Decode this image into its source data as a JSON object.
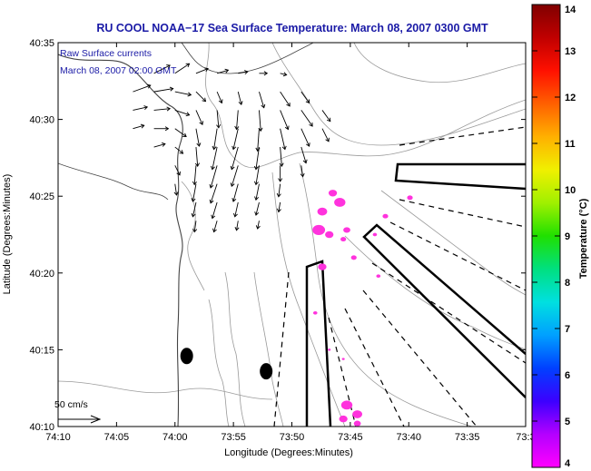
{
  "chart_data": {
    "type": "scatter",
    "title": "RU COOL  NOAA−17  Sea Surface Temperature:  March 08, 2007 0300 GMT",
    "annotation_line1": "Raw Surface currents",
    "annotation_line2": "March 08, 2007 02:00 GMT",
    "xlabel": "Longitude (Degrees:Minutes)",
    "ylabel": "Latitude (Degrees:Minutes)",
    "x_tick_labels": [
      "74:10",
      "74:05",
      "74:00",
      "73:55",
      "73:50",
      "73:45",
      "73:40",
      "73:35",
      "73:3"
    ],
    "y_tick_labels": [
      "40:35",
      "40:30",
      "40:25",
      "40:20",
      "40:15",
      "40:10"
    ],
    "xlim": [
      -74.1667,
      -73.5
    ],
    "ylim": [
      40.1667,
      40.5833
    ],
    "colorbar": {
      "label": "Temperature (°C)",
      "tick_labels": [
        "14",
        "13",
        "12",
        "11",
        "10",
        "9",
        "8",
        "7",
        "6",
        "5",
        "4"
      ],
      "range": [
        4,
        14
      ],
      "colors": [
        "#ff00ff",
        "#b400ff",
        "#3c00ff",
        "#0040ff",
        "#00a0ff",
        "#00e0e0",
        "#00e080",
        "#20e000",
        "#a0f000",
        "#f0f000",
        "#ffb000",
        "#ff6000",
        "#ff1000",
        "#c00000",
        "#800000"
      ]
    },
    "scale_label": "50 cm/s",
    "grid": false,
    "legend": "none",
    "ocean_color": "#ffffff",
    "sst_color": "#ff33dd",
    "land_markers": [
      {
        "lon": -73.9833,
        "lat": 40.2433
      },
      {
        "lon": -73.87,
        "lat": 40.2267
      }
    ],
    "current_vectors": [
      {
        "lon": -74.03,
        "lat": 40.55,
        "u": 20,
        "v": 10
      },
      {
        "lon": -74.0,
        "lat": 40.55,
        "u": 18,
        "v": 12
      },
      {
        "lon": -73.97,
        "lat": 40.55,
        "u": 15,
        "v": 6
      },
      {
        "lon": -73.94,
        "lat": 40.55,
        "u": 14,
        "v": 4
      },
      {
        "lon": -73.91,
        "lat": 40.55,
        "u": 12,
        "v": 2
      },
      {
        "lon": -73.88,
        "lat": 40.55,
        "u": 10,
        "v": 0
      },
      {
        "lon": -73.85,
        "lat": 40.55,
        "u": 8,
        "v": -2
      },
      {
        "lon": -74.06,
        "lat": 40.53,
        "u": 22,
        "v": 8
      },
      {
        "lon": -74.03,
        "lat": 40.53,
        "u": 24,
        "v": 4
      },
      {
        "lon": -74.0,
        "lat": 40.53,
        "u": 20,
        "v": -4
      },
      {
        "lon": -73.97,
        "lat": 40.53,
        "u": 12,
        "v": -12
      },
      {
        "lon": -73.94,
        "lat": 40.53,
        "u": 6,
        "v": -14
      },
      {
        "lon": -73.91,
        "lat": 40.53,
        "u": 4,
        "v": -16
      },
      {
        "lon": -73.88,
        "lat": 40.53,
        "u": 6,
        "v": -20
      },
      {
        "lon": -73.85,
        "lat": 40.53,
        "u": 12,
        "v": -18
      },
      {
        "lon": -73.82,
        "lat": 40.53,
        "u": 10,
        "v": -14
      },
      {
        "lon": -74.06,
        "lat": 40.51,
        "u": 18,
        "v": 4
      },
      {
        "lon": -74.03,
        "lat": 40.51,
        "u": 20,
        "v": 2
      },
      {
        "lon": -74.0,
        "lat": 40.51,
        "u": 18,
        "v": -6
      },
      {
        "lon": -73.97,
        "lat": 40.51,
        "u": 8,
        "v": -18
      },
      {
        "lon": -73.94,
        "lat": 40.51,
        "u": 2,
        "v": -22
      },
      {
        "lon": -73.91,
        "lat": 40.51,
        "u": -2,
        "v": -24
      },
      {
        "lon": -73.88,
        "lat": 40.51,
        "u": 2,
        "v": -26
      },
      {
        "lon": -73.85,
        "lat": 40.51,
        "u": 10,
        "v": -24
      },
      {
        "lon": -73.82,
        "lat": 40.51,
        "u": 14,
        "v": -20
      },
      {
        "lon": -73.79,
        "lat": 40.51,
        "u": 10,
        "v": -14
      },
      {
        "lon": -74.06,
        "lat": 40.49,
        "u": 14,
        "v": 4
      },
      {
        "lon": -74.03,
        "lat": 40.49,
        "u": 18,
        "v": 0
      },
      {
        "lon": -74.0,
        "lat": 40.49,
        "u": 14,
        "v": -10
      },
      {
        "lon": -73.97,
        "lat": 40.49,
        "u": 4,
        "v": -22
      },
      {
        "lon": -73.94,
        "lat": 40.49,
        "u": -4,
        "v": -26
      },
      {
        "lon": -73.91,
        "lat": 40.49,
        "u": -6,
        "v": -26
      },
      {
        "lon": -73.88,
        "lat": 40.49,
        "u": -2,
        "v": -28
      },
      {
        "lon": -73.85,
        "lat": 40.49,
        "u": 6,
        "v": -26
      },
      {
        "lon": -73.82,
        "lat": 40.49,
        "u": 10,
        "v": -22
      },
      {
        "lon": -73.79,
        "lat": 40.49,
        "u": 8,
        "v": -16
      },
      {
        "lon": -74.03,
        "lat": 40.47,
        "u": 14,
        "v": 4
      },
      {
        "lon": -74.0,
        "lat": 40.47,
        "u": 10,
        "v": -8
      },
      {
        "lon": -73.97,
        "lat": 40.47,
        "u": 2,
        "v": -24
      },
      {
        "lon": -73.94,
        "lat": 40.47,
        "u": -6,
        "v": -28
      },
      {
        "lon": -73.91,
        "lat": 40.47,
        "u": -8,
        "v": -28
      },
      {
        "lon": -73.88,
        "lat": 40.47,
        "u": -4,
        "v": -28
      },
      {
        "lon": -73.85,
        "lat": 40.47,
        "u": 2,
        "v": -24
      },
      {
        "lon": -73.82,
        "lat": 40.47,
        "u": 6,
        "v": -20
      },
      {
        "lon": -74.0,
        "lat": 40.45,
        "u": 6,
        "v": -12
      },
      {
        "lon": -73.97,
        "lat": 40.45,
        "u": -2,
        "v": -24
      },
      {
        "lon": -73.94,
        "lat": 40.45,
        "u": -8,
        "v": -28
      },
      {
        "lon": -73.91,
        "lat": 40.45,
        "u": -8,
        "v": -26
      },
      {
        "lon": -73.88,
        "lat": 40.45,
        "u": -4,
        "v": -24
      },
      {
        "lon": -73.85,
        "lat": 40.45,
        "u": 0,
        "v": -20
      },
      {
        "lon": -73.82,
        "lat": 40.45,
        "u": 2,
        "v": -14
      },
      {
        "lon": -74.0,
        "lat": 40.43,
        "u": 2,
        "v": -14
      },
      {
        "lon": -73.97,
        "lat": 40.43,
        "u": -4,
        "v": -22
      },
      {
        "lon": -73.94,
        "lat": 40.43,
        "u": -8,
        "v": -24
      },
      {
        "lon": -73.91,
        "lat": 40.43,
        "u": -6,
        "v": -22
      },
      {
        "lon": -73.88,
        "lat": 40.43,
        "u": -4,
        "v": -20
      },
      {
        "lon": -73.85,
        "lat": 40.43,
        "u": -2,
        "v": -16
      },
      {
        "lon": -73.97,
        "lat": 40.41,
        "u": -4,
        "v": -18
      },
      {
        "lon": -73.94,
        "lat": 40.41,
        "u": -6,
        "v": -20
      },
      {
        "lon": -73.91,
        "lat": 40.41,
        "u": -4,
        "v": -18
      },
      {
        "lon": -73.88,
        "lat": 40.41,
        "u": -4,
        "v": -16
      },
      {
        "lon": -73.85,
        "lat": 40.41,
        "u": -2,
        "v": -12
      },
      {
        "lon": -73.97,
        "lat": 40.39,
        "u": -2,
        "v": -14
      },
      {
        "lon": -73.94,
        "lat": 40.39,
        "u": -4,
        "v": -14
      },
      {
        "lon": -73.91,
        "lat": 40.39,
        "u": -2,
        "v": -12
      },
      {
        "lon": -73.88,
        "lat": 40.39,
        "u": -2,
        "v": -10
      }
    ],
    "sst_patches": [
      {
        "lon": -73.775,
        "lat": 40.42,
        "r": 0.006
      },
      {
        "lon": -73.765,
        "lat": 40.41,
        "r": 0.008
      },
      {
        "lon": -73.79,
        "lat": 40.4,
        "r": 0.007
      },
      {
        "lon": -73.795,
        "lat": 40.38,
        "r": 0.009
      },
      {
        "lon": -73.78,
        "lat": 40.375,
        "r": 0.006
      },
      {
        "lon": -73.755,
        "lat": 40.38,
        "r": 0.005
      },
      {
        "lon": -73.79,
        "lat": 40.34,
        "r": 0.006
      },
      {
        "lon": -73.76,
        "lat": 40.37,
        "r": 0.004
      },
      {
        "lon": -73.745,
        "lat": 40.35,
        "r": 0.004
      },
      {
        "lon": -73.7,
        "lat": 40.395,
        "r": 0.004
      },
      {
        "lon": -73.715,
        "lat": 40.375,
        "r": 0.003
      },
      {
        "lon": -73.71,
        "lat": 40.33,
        "r": 0.003
      },
      {
        "lon": -73.8,
        "lat": 40.29,
        "r": 0.003
      },
      {
        "lon": -73.78,
        "lat": 40.25,
        "r": 0.002
      },
      {
        "lon": -73.76,
        "lat": 40.24,
        "r": 0.002
      },
      {
        "lon": -73.755,
        "lat": 40.19,
        "r": 0.008
      },
      {
        "lon": -73.74,
        "lat": 40.18,
        "r": 0.007
      },
      {
        "lon": -73.76,
        "lat": 40.175,
        "r": 0.006
      },
      {
        "lon": -73.74,
        "lat": 40.17,
        "r": 0.005
      },
      {
        "lon": -73.665,
        "lat": 40.415,
        "r": 0.004
      }
    ]
  }
}
